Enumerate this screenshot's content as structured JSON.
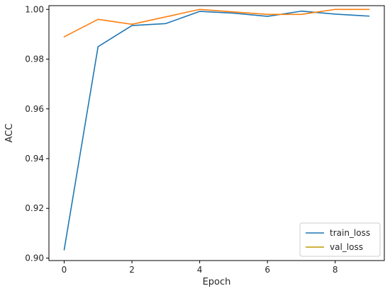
{
  "chart_data": {
    "type": "line",
    "title": "",
    "xlabel": "Epoch",
    "ylabel": "ACC",
    "xlim": [
      -0.45,
      9.45
    ],
    "ylim": [
      0.899,
      1.0015
    ],
    "xticks": [
      0,
      2,
      4,
      6,
      8
    ],
    "yticks": [
      0.9,
      0.92,
      0.94,
      0.96,
      0.98,
      1.0
    ],
    "ytick_labels": [
      "0.90",
      "0.92",
      "0.94",
      "0.96",
      "0.98",
      "1.00"
    ],
    "grid": false,
    "legend_position": "lower right",
    "x": [
      0,
      1,
      2,
      3,
      4,
      5,
      6,
      7,
      8,
      9
    ],
    "series": [
      {
        "name": "train_loss",
        "color": "#1f77b4",
        "legend_color": "#1f77b4",
        "values": [
          0.9033,
          0.985,
          0.9935,
          0.9943,
          0.9992,
          0.9985,
          0.9972,
          0.9993,
          0.9981,
          0.9973
        ]
      },
      {
        "name": "val_loss",
        "color": "#ff7f0e",
        "legend_color": "#bf9b00",
        "values": [
          0.989,
          0.996,
          0.994,
          0.997,
          1.0,
          0.999,
          0.998,
          0.998,
          1.0,
          1.0
        ]
      }
    ]
  }
}
